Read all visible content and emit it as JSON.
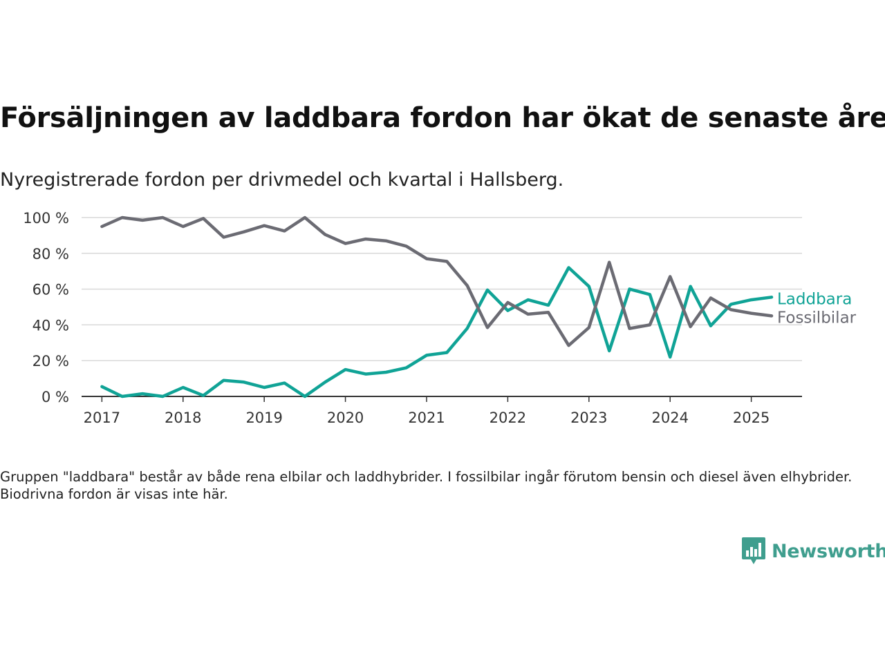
{
  "title": "Försäljningen av laddbara fordon har ökat de senaste åren",
  "subtitle": "Nyregistrerade fordon per drivmedel och kvartal i Hallsberg.",
  "note": "Gruppen \"laddbara\" består av både rena elbilar och laddhybrider. I fossilbilar ingår förutom bensin och diesel även elhybrider. Biodrivna fordon är visas inte här.",
  "brand": {
    "name": "Newsworthy",
    "color": "#3f9e8e",
    "icon": "newsworthy-logo-icon"
  },
  "chart_data": {
    "type": "line",
    "ylim": [
      0,
      100
    ],
    "y_ticks": [
      0,
      20,
      40,
      60,
      80,
      100
    ],
    "y_tick_labels": [
      "0 %",
      "20 %",
      "40 %",
      "60 %",
      "80 %",
      "100 %"
    ],
    "x_ticks": [
      2017,
      2018,
      2019,
      2020,
      2021,
      2022,
      2023,
      2024,
      2025
    ],
    "x_tick_labels": [
      "2017",
      "2018",
      "2019",
      "2020",
      "2021",
      "2022",
      "2023",
      "2024",
      "2025"
    ],
    "grid": true,
    "x": [
      2017,
      2017.25,
      2017.5,
      2017.75,
      2018,
      2018.25,
      2018.5,
      2018.75,
      2019,
      2019.25,
      2019.5,
      2019.75,
      2020,
      2020.25,
      2020.5,
      2020.75,
      2021,
      2021.25,
      2021.5,
      2021.75,
      2022,
      2022.25,
      2022.5,
      2022.75,
      2023,
      2023.25,
      2023.5,
      2023.75,
      2024,
      2024.25,
      2024.5,
      2024.75,
      2025,
      2025.25
    ],
    "series": [
      {
        "name": "Fossilbilar",
        "color": "#6b6b73",
        "values": [
          95,
          100,
          98.5,
          100,
          95,
          99.5,
          89,
          92,
          95.5,
          92.5,
          100,
          90.5,
          85.5,
          88,
          87,
          84,
          77,
          75.5,
          62,
          38.5,
          52.5,
          46,
          47,
          28.5,
          38.5,
          75,
          38,
          40,
          67,
          39,
          55,
          48.5,
          46.5,
          45
        ]
      },
      {
        "name": "Laddbara",
        "color": "#10a396",
        "values": [
          5.5,
          0,
          1.5,
          0,
          5,
          0.5,
          9,
          8,
          5,
          7.5,
          0,
          8,
          15,
          12.5,
          13.5,
          16,
          23,
          24.5,
          38,
          59.5,
          48,
          54,
          51,
          72,
          61.5,
          25.5,
          60,
          57,
          22,
          61.5,
          39.5,
          51.5,
          54,
          55.5
        ]
      }
    ]
  }
}
